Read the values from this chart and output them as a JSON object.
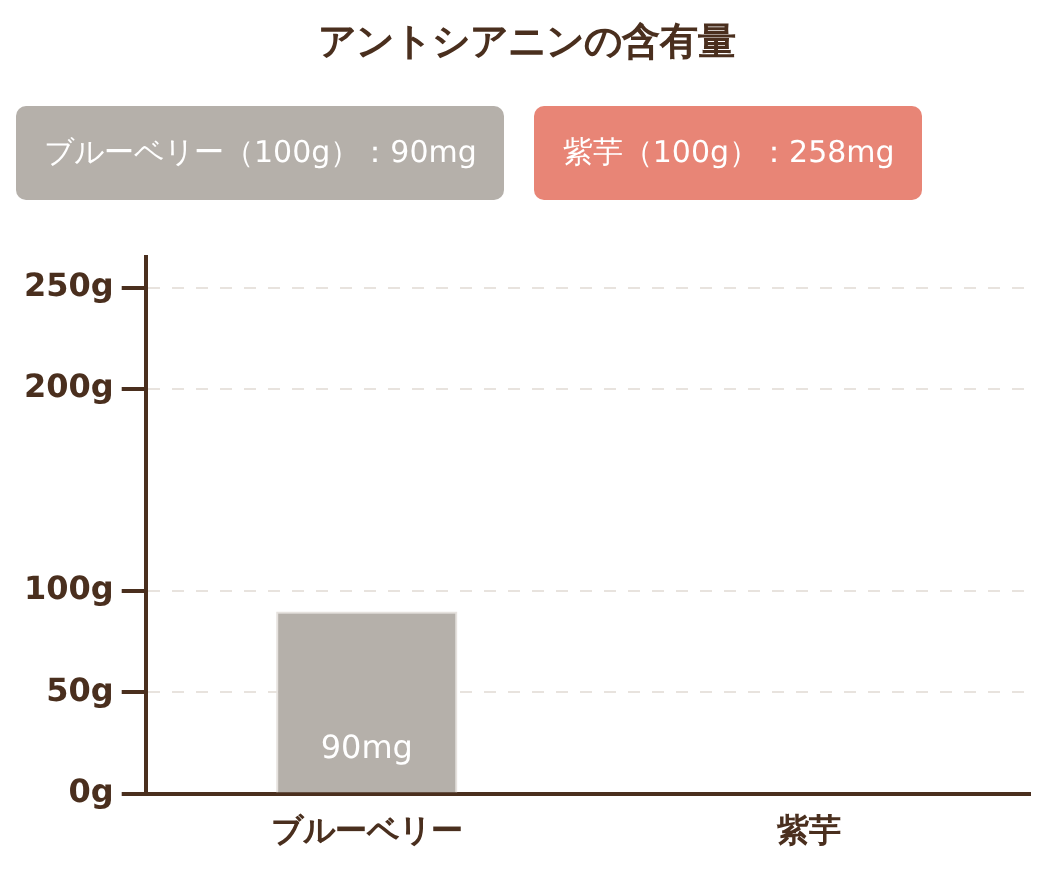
{
  "chart_data": {
    "type": "bar",
    "title": "アントシアニンの含有量",
    "categories": [
      "ブルーベリー",
      "紫芋"
    ],
    "values": [
      90,
      null
    ],
    "colors": [
      "#b5b0aa",
      "#e88576"
    ],
    "value_labels": [
      "90mg",
      null
    ],
    "annotations": [
      "ブルーベリー（100g）：90mg",
      "紫芋（100g）：258mg"
    ],
    "ylim": [
      0,
      265
    ],
    "yticks": [
      {
        "value": 0,
        "label": "0g"
      },
      {
        "value": 50,
        "label": "50g"
      },
      {
        "value": 100,
        "label": "100g"
      },
      {
        "value": 200,
        "label": "200g"
      },
      {
        "value": 250,
        "label": "250g"
      }
    ],
    "grid": "y"
  }
}
